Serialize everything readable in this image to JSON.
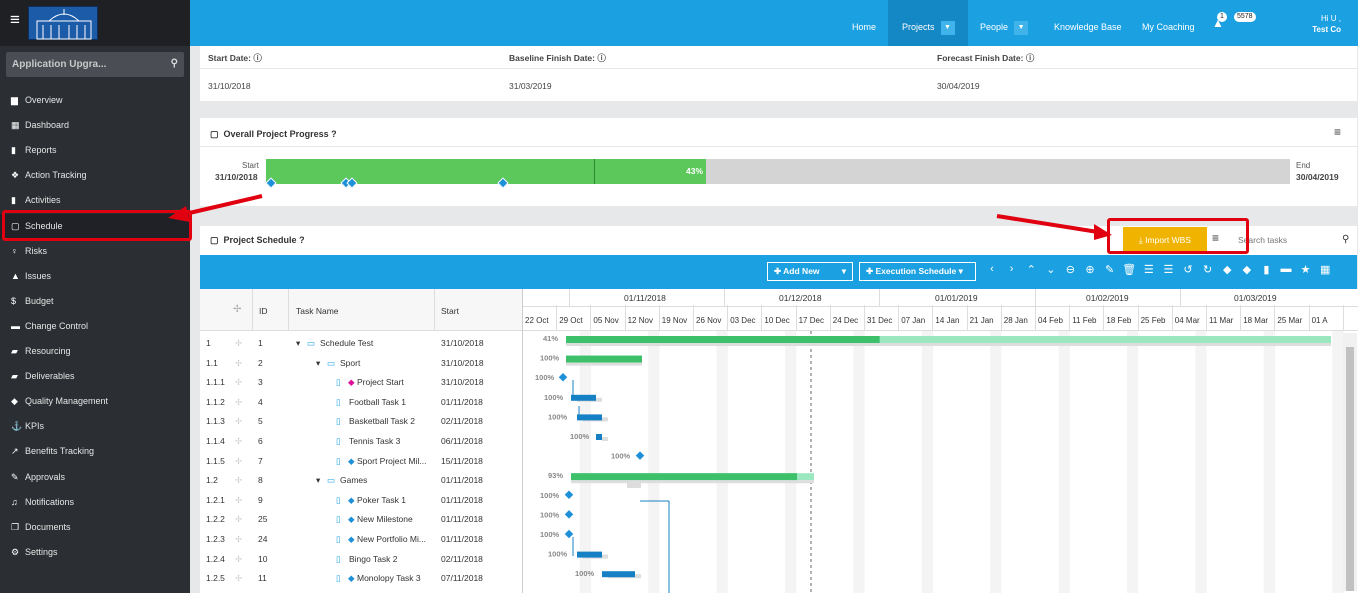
{
  "sidebar": {
    "project_name": "Application Upgra...",
    "items": [
      {
        "label": "Overview",
        "icon": "overview-icon",
        "glyph": "▆"
      },
      {
        "label": "Dashboard",
        "icon": "dashboard-icon",
        "glyph": "▦"
      },
      {
        "label": "Reports",
        "icon": "reports-icon",
        "glyph": "▮"
      },
      {
        "label": "Action Tracking",
        "icon": "action-tracking-icon",
        "glyph": "❖"
      },
      {
        "label": "Activities",
        "icon": "activities-icon",
        "glyph": "▮"
      },
      {
        "label": "Schedule",
        "icon": "calendar-icon",
        "glyph": "▢"
      },
      {
        "label": "Risks",
        "icon": "risks-icon",
        "glyph": "♀"
      },
      {
        "label": "Issues",
        "icon": "issues-icon",
        "glyph": "▲"
      },
      {
        "label": "Budget",
        "icon": "budget-icon",
        "glyph": "$"
      },
      {
        "label": "Change Control",
        "icon": "change-control-icon",
        "glyph": "▬"
      },
      {
        "label": "Resourcing",
        "icon": "resourcing-icon",
        "glyph": "▰"
      },
      {
        "label": "Deliverables",
        "icon": "deliverables-icon",
        "glyph": "▰"
      },
      {
        "label": "Quality Management",
        "icon": "quality-icon",
        "glyph": "◆"
      },
      {
        "label": "KPIs",
        "icon": "kpis-icon",
        "glyph": "⚓"
      },
      {
        "label": "Benefits Tracking",
        "icon": "benefits-icon",
        "glyph": "↗"
      },
      {
        "label": "Approvals",
        "icon": "approvals-icon",
        "glyph": "✎"
      },
      {
        "label": "Notifications",
        "icon": "notifications-icon",
        "glyph": "♫"
      },
      {
        "label": "Documents",
        "icon": "documents-icon",
        "glyph": "❐"
      },
      {
        "label": "Settings",
        "icon": "settings-icon",
        "glyph": "⚙"
      }
    ]
  },
  "topnav": {
    "home": "Home",
    "projects": "Projects",
    "people": "People",
    "knowledge_base": "Knowledge Base",
    "my_coaching": "My Coaching",
    "notif_count": "1",
    "message_count": "5578",
    "user_greeting": "Hi U ,",
    "company": "Test Co"
  },
  "dates": {
    "start_label": "Start Date:",
    "start_value": "31/10/2018",
    "baseline_label": "Baseline Finish Date:",
    "baseline_value": "31/03/2019",
    "forecast_label": "Forecast Finish Date:",
    "forecast_value": "30/04/2019"
  },
  "progress": {
    "title": "Overall Project Progress",
    "start_label": "Start",
    "start_date": "31/10/2018",
    "end_label": "End",
    "end_date": "30/04/2019",
    "percent": "43%",
    "percent_value": 0.43
  },
  "schedule": {
    "title": "Project Schedule",
    "import_label": "Import WBS",
    "search_placeholder": "Search tasks",
    "add_new": "Add New",
    "execution_schedule": "Execution Schedule",
    "columns": {
      "id": "ID",
      "task": "Task Name",
      "start": "Start"
    },
    "rows": [
      {
        "wbs": "1",
        "id": "1",
        "name": "Schedule Test",
        "start": "31/10/2018",
        "level": 0,
        "type": "folder"
      },
      {
        "wbs": "1.1",
        "id": "2",
        "name": "Sport",
        "start": "31/10/2018",
        "level": 1,
        "type": "folder"
      },
      {
        "wbs": "1.1.1",
        "id": "3",
        "name": "Project Start",
        "start": "31/10/2018",
        "level": 2,
        "type": "milestone-pink"
      },
      {
        "wbs": "1.1.2",
        "id": "4",
        "name": "Football Task 1",
        "start": "01/11/2018",
        "level": 2,
        "type": "task"
      },
      {
        "wbs": "1.1.3",
        "id": "5",
        "name": "Basketball Task 2",
        "start": "02/11/2018",
        "level": 2,
        "type": "task"
      },
      {
        "wbs": "1.1.4",
        "id": "6",
        "name": "Tennis Task 3",
        "start": "06/11/2018",
        "level": 2,
        "type": "task"
      },
      {
        "wbs": "1.1.5",
        "id": "7",
        "name": "Sport Project Mil...",
        "start": "15/11/2018",
        "level": 2,
        "type": "milestone"
      },
      {
        "wbs": "1.2",
        "id": "8",
        "name": "Games",
        "start": "01/11/2018",
        "level": 1,
        "type": "folder"
      },
      {
        "wbs": "1.2.1",
        "id": "9",
        "name": "Poker Task 1",
        "start": "01/11/2018",
        "level": 2,
        "type": "milestone"
      },
      {
        "wbs": "1.2.2",
        "id": "25",
        "name": "New Milestone",
        "start": "01/11/2018",
        "level": 2,
        "type": "milestone"
      },
      {
        "wbs": "1.2.3",
        "id": "24",
        "name": "New Portfolio Mi...",
        "start": "01/11/2018",
        "level": 2,
        "type": "milestone"
      },
      {
        "wbs": "1.2.4",
        "id": "10",
        "name": "Bingo Task 2",
        "start": "02/11/2018",
        "level": 2,
        "type": "task"
      },
      {
        "wbs": "1.2.5",
        "id": "11",
        "name": "Monolopy Task 3",
        "start": "07/11/2018",
        "level": 2,
        "type": "milestone"
      }
    ],
    "months": [
      "01/11/2018",
      "01/12/2018",
      "01/01/2019",
      "01/02/2019",
      "01/03/2019"
    ],
    "weeks": [
      "22 Oct",
      "29 Oct",
      "05 Nov",
      "12 Nov",
      "19 Nov",
      "26 Nov",
      "03 Dec",
      "10 Dec",
      "17 Dec",
      "24 Dec",
      "31 Dec",
      "07 Jan",
      "14 Jan",
      "21 Jan",
      "28 Jan",
      "04 Feb",
      "11 Feb",
      "18 Feb",
      "25 Feb",
      "04 Mar",
      "11 Mar",
      "18 Mar",
      "25 Mar",
      "01 A"
    ],
    "gantt_pct": [
      "41%",
      "100%",
      "100%",
      "100%",
      "100%",
      "100%",
      "100%",
      "93%",
      "100%",
      "100%",
      "100%",
      "100%",
      "100%"
    ]
  },
  "colors": {
    "accent": "#1ba1e2",
    "progress": "#5cc85c",
    "import": "#f0b400",
    "highlight": "#e00010"
  }
}
